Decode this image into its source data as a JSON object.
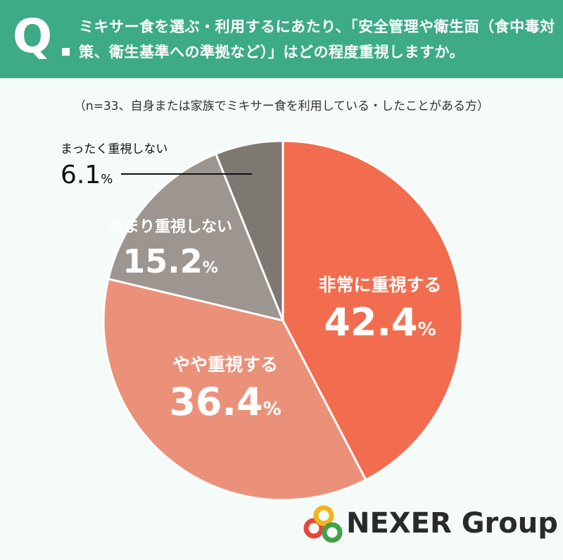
{
  "header": {
    "q_letter": "Q",
    "question": "ミキサー食を選ぶ・利用するにあたり、「安全管理や衛生面（食中毒対策、衛生基準への準拠など）」はどの程度重視しますか。"
  },
  "note": "（n=33、自身または家族でミキサー食を利用している・したことがある方）",
  "chart_data": {
    "type": "pie",
    "title": "",
    "unit": "%",
    "slices": [
      {
        "name": "非常に重視する",
        "value": 42.4,
        "value_label": "42.4",
        "color": "#f26d4f"
      },
      {
        "name": "やや重視する",
        "value": 36.4,
        "value_label": "36.4",
        "color": "#ec9179"
      },
      {
        "name": "あまり重視しない",
        "value": 15.2,
        "value_label": "15.2",
        "color": "#9c9590"
      },
      {
        "name": "まったく重視しない",
        "value": 6.1,
        "value_label": "6.1",
        "color": "#7e7873"
      }
    ],
    "start": "12 o'clock, clockwise"
  },
  "logo": {
    "text": "NEXER Group",
    "ring_colors": [
      "#e8463b",
      "#f1b51c",
      "#43a047"
    ]
  }
}
